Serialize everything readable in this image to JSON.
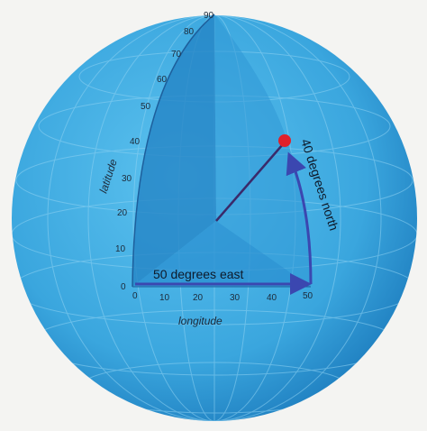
{
  "diagram": {
    "latitude_ticks": [
      "0",
      "10",
      "20",
      "30",
      "40",
      "50",
      "60",
      "70",
      "80",
      "90"
    ],
    "longitude_ticks": [
      "0",
      "10",
      "20",
      "30",
      "40",
      "50"
    ],
    "latitude_axis_label": "latitude",
    "longitude_axis_label": "longitude",
    "east_arrow_label": "50 degrees east",
    "north_arrow_label": "40 degrees north",
    "colors": {
      "globe": "#3aa6de",
      "globe_dark": "#1f7fc0",
      "wedge": "#2a8fd0",
      "arrow": "#3b47b0",
      "point": "#e0202a",
      "grid": "#8fd2f2"
    }
  }
}
